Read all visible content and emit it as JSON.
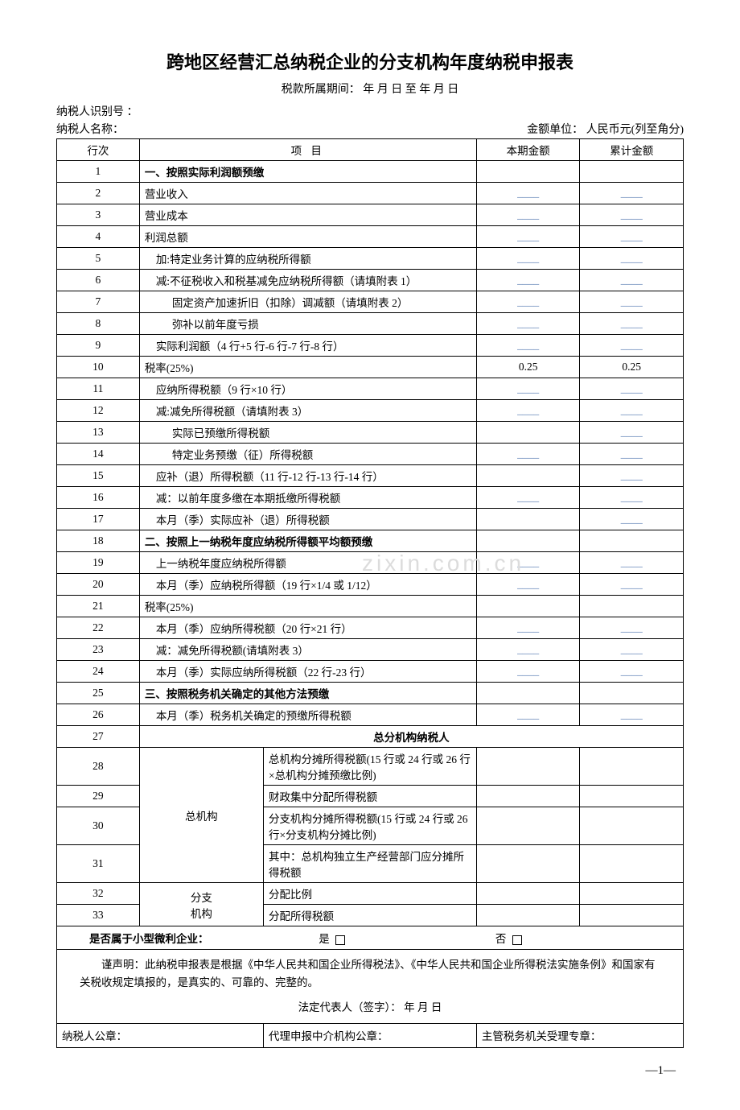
{
  "title": "跨地区经营汇总纳税企业的分支机构年度纳税申报表",
  "period_label": "税款所属期间：    年  月  日 至    年  月  日",
  "taxpayer_id_label": "纳税人识别号 ：",
  "taxpayer_name_label": "纳税人名称：",
  "currency_unit_label": "金额单位：   人民币元(列至角分)",
  "watermark": "zixin.com.cn",
  "table_headers": {
    "rownum": "行次",
    "item": "项     目",
    "current": "本期金额",
    "cumulative": "累计金额"
  },
  "blank_value": "____",
  "rows": [
    {
      "num": "1",
      "item": "一、按照实际利润额预缴",
      "bold": true,
      "current": "",
      "cumulative": ""
    },
    {
      "num": "2",
      "item": "营业收入",
      "current": "____",
      "cumulative": "____"
    },
    {
      "num": "3",
      "item": "营业成本",
      "current": "____",
      "cumulative": "____"
    },
    {
      "num": "4",
      "item": "利润总额",
      "current": "____",
      "cumulative": "____"
    },
    {
      "num": "5",
      "item": "加:特定业务计算的应纳税所得额",
      "indent": 1,
      "current": "____",
      "cumulative": "____"
    },
    {
      "num": "6",
      "item": "减:不征税收入和税基减免应纳税所得额（请填附表 1）",
      "indent": 1,
      "current": "____",
      "cumulative": "____"
    },
    {
      "num": "7",
      "item": "固定资产加速折旧（扣除）调减额（请填附表 2）",
      "indent": 2,
      "current": "____",
      "cumulative": "____"
    },
    {
      "num": "8",
      "item": "弥补以前年度亏损",
      "indent": 2,
      "current": "____",
      "cumulative": "____"
    },
    {
      "num": "9",
      "item": "实际利润额（4 行+5 行-6 行-7 行-8 行）",
      "indent": 1,
      "current": "____",
      "cumulative": "____"
    },
    {
      "num": "10",
      "item": "税率(25%)",
      "current": "0.25",
      "cumulative": "0.25",
      "static": true
    },
    {
      "num": "11",
      "item": "应纳所得税额（9 行×10 行）",
      "indent": 1,
      "current": "____",
      "cumulative": "____"
    },
    {
      "num": "12",
      "item": "减:减免所得税额（请填附表 3）",
      "indent": 1,
      "current": "____",
      "cumulative": "____"
    },
    {
      "num": "13",
      "item": "实际已预缴所得税额",
      "indent": 2,
      "current": "",
      "cumulative": "____"
    },
    {
      "num": "14",
      "item": "特定业务预缴（征）所得税额",
      "indent": 2,
      "current": "____",
      "cumulative": "____"
    },
    {
      "num": "15",
      "item": "应补（退）所得税额（11 行-12 行-13 行-14 行）",
      "indent": 1,
      "current": "",
      "cumulative": "____"
    },
    {
      "num": "16",
      "item": "减：以前年度多缴在本期抵缴所得税额",
      "indent": 1,
      "current": "____",
      "cumulative": "____"
    },
    {
      "num": "17",
      "item": "本月（季）实际应补（退）所得税额",
      "indent": 1,
      "current": "",
      "cumulative": "____"
    },
    {
      "num": "18",
      "item": "二、按照上一纳税年度应纳税所得额平均额预缴",
      "bold": true,
      "current": "",
      "cumulative": ""
    },
    {
      "num": "19",
      "item": "上一纳税年度应纳税所得额",
      "indent": 1,
      "current": "____",
      "cumulative": "____"
    },
    {
      "num": "20",
      "item": "本月（季）应纳税所得额（19 行×1/4 或 1/12）",
      "indent": 1,
      "current": "____",
      "cumulative": "____"
    },
    {
      "num": "21",
      "item": "税率(25%)",
      "current": "",
      "cumulative": ""
    },
    {
      "num": "22",
      "item": "本月（季）应纳所得税额（20 行×21 行）",
      "indent": 1,
      "current": "____",
      "cumulative": "____"
    },
    {
      "num": "23",
      "item": "减：减免所得税额(请填附表 3）",
      "indent": 1,
      "current": "____",
      "cumulative": "____"
    },
    {
      "num": "24",
      "item": "本月（季）实际应纳所得税额（22 行-23 行）",
      "indent": 1,
      "current": "____",
      "cumulative": "____"
    },
    {
      "num": "25",
      "item": "三、按照税务机关确定的其他方法预缴",
      "bold": true,
      "current": "",
      "cumulative": ""
    },
    {
      "num": "26",
      "item": "本月（季）税务机关确定的预缴所得税额",
      "indent": 1,
      "current": "____",
      "cumulative": "____"
    }
  ],
  "row27": {
    "num": "27",
    "label": "总分机构纳税人"
  },
  "group_rows": {
    "head_label": "总机构",
    "branch_label": "分支\n机构",
    "r28": {
      "num": "28",
      "item": "总机构分摊所得税额(15 行或 24 行或 26 行×总机构分摊预缴比例)"
    },
    "r29": {
      "num": "29",
      "item": "财政集中分配所得税额"
    },
    "r30": {
      "num": "30",
      "item": "分支机构分摊所得税额(15 行或 24 行或 26 行×分支机构分摊比例)"
    },
    "r31": {
      "num": "31",
      "item": "其中：总机构独立生产经营部门应分摊所得税额"
    },
    "r32": {
      "num": "32",
      "item": "分配比例"
    },
    "r33": {
      "num": "33",
      "item": "分配所得税额"
    }
  },
  "small_enterprise": {
    "label": "是否属于小型微利企业：",
    "yes": "是",
    "no": "否"
  },
  "declaration": "　　谨声明：此纳税申报表是根据《中华人民共和国企业所得税法》、《中华人民共和国企业所得税法实施条例》和国家有关税收规定填报的，是真实的、可靠的、完整的。",
  "sign_line": "法定代表人（签字）：      年   月   日",
  "seals": {
    "taxpayer": "纳税人公章：",
    "agent": "代理申报中介机构公章：",
    "tax_authority": "主管税务机关受理专章："
  },
  "page_number": "—1—",
  "colors": {
    "text": "#000000",
    "blank_line": "#5b7fb4",
    "watermark": "#dcdcdc",
    "background": "#ffffff",
    "border": "#000000"
  }
}
